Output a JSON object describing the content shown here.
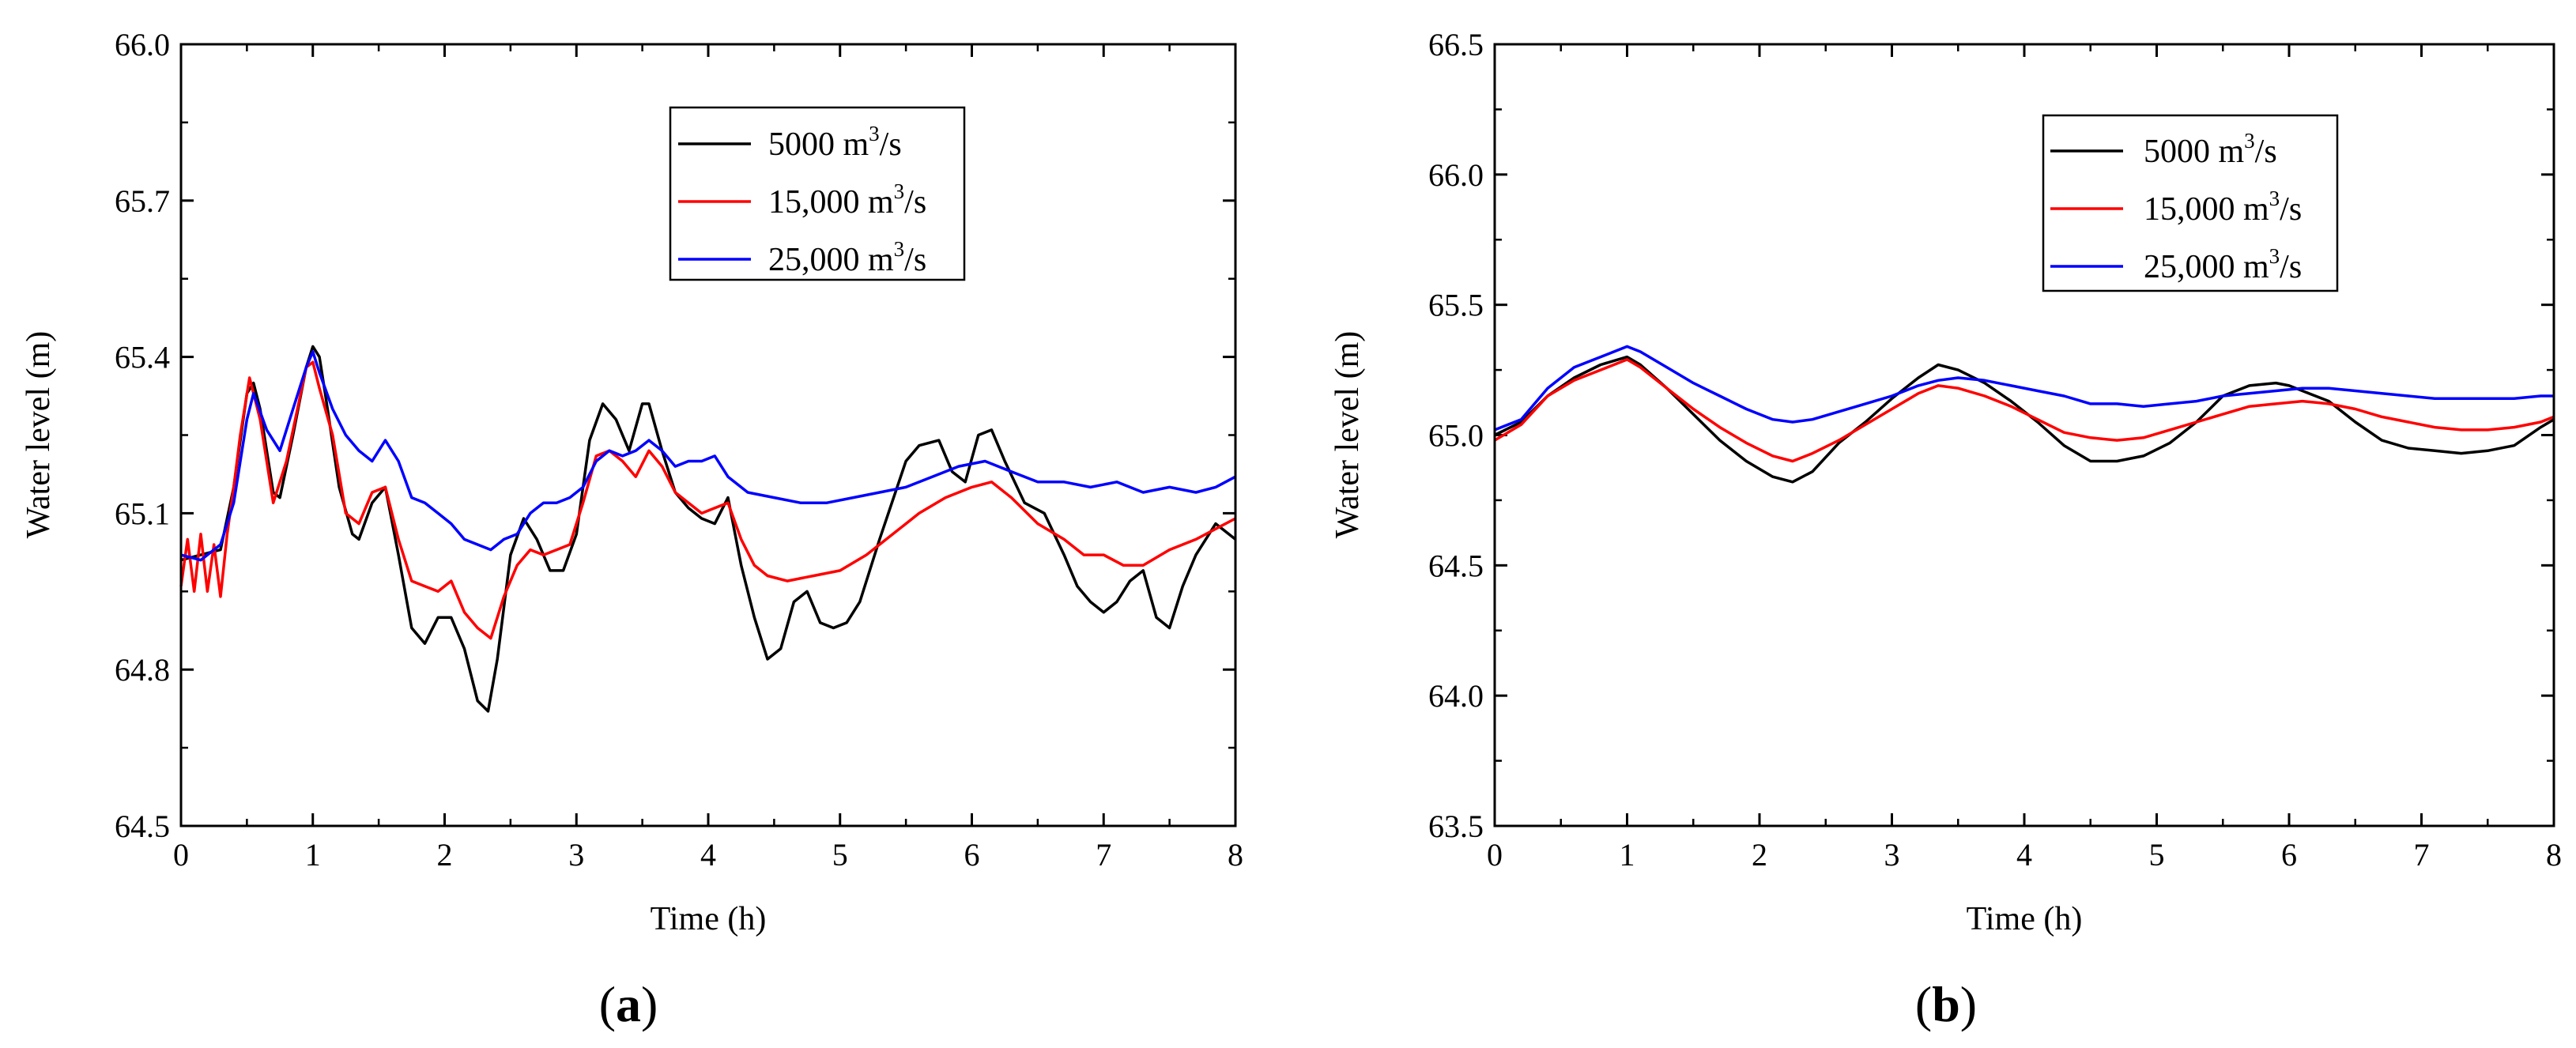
{
  "chart_data": [
    {
      "type": "line",
      "panel_label": "a",
      "xlabel": "Time (h)",
      "ylabel": "Water level (m)",
      "xlim": [
        0,
        8
      ],
      "ylim": [
        64.5,
        66.0
      ],
      "xticks": [
        0,
        1,
        2,
        3,
        4,
        5,
        6,
        7,
        8
      ],
      "yticks": [
        64.5,
        64.8,
        65.1,
        65.4,
        65.7,
        66.0
      ],
      "ytick_labels": [
        "64.5",
        "64.8",
        "65.1",
        "65.4",
        "65.7",
        "66.0"
      ],
      "grid": false,
      "legend_position": "top-right",
      "series": [
        {
          "name": "5000 m3/s",
          "label_main": "5000 m",
          "label_sup": "3",
          "label_tail": "/s",
          "color": "#000000",
          "x": [
            0,
            0.15,
            0.3,
            0.4,
            0.5,
            0.55,
            0.6,
            0.7,
            0.75,
            0.85,
            0.95,
            1.0,
            1.05,
            1.1,
            1.2,
            1.3,
            1.35,
            1.45,
            1.55,
            1.65,
            1.75,
            1.85,
            1.95,
            2.05,
            2.15,
            2.25,
            2.33,
            2.4,
            2.5,
            2.6,
            2.7,
            2.8,
            2.9,
            3.0,
            3.1,
            3.2,
            3.3,
            3.4,
            3.5,
            3.55,
            3.65,
            3.75,
            3.85,
            3.95,
            4.05,
            4.15,
            4.25,
            4.35,
            4.45,
            4.55,
            4.65,
            4.75,
            4.85,
            4.95,
            5.05,
            5.15,
            5.3,
            5.5,
            5.6,
            5.75,
            5.85,
            5.95,
            6.05,
            6.15,
            6.25,
            6.4,
            6.55,
            6.7,
            6.8,
            6.9,
            7.0,
            7.1,
            7.2,
            7.3,
            7.4,
            7.5,
            7.6,
            7.7,
            7.85,
            8.0
          ],
          "y": [
            65.01,
            65.02,
            65.03,
            65.15,
            65.33,
            65.35,
            65.3,
            65.14,
            65.13,
            65.25,
            65.38,
            65.42,
            65.4,
            65.32,
            65.15,
            65.06,
            65.05,
            65.12,
            65.15,
            65.02,
            64.88,
            64.85,
            64.9,
            64.9,
            64.84,
            64.74,
            64.72,
            64.82,
            65.02,
            65.09,
            65.05,
            64.99,
            64.99,
            65.06,
            65.24,
            65.31,
            65.28,
            65.22,
            65.31,
            65.31,
            65.22,
            65.14,
            65.11,
            65.09,
            65.08,
            65.13,
            65.0,
            64.9,
            64.82,
            64.84,
            64.93,
            64.95,
            64.89,
            64.88,
            64.89,
            64.93,
            65.05,
            65.2,
            65.23,
            65.24,
            65.18,
            65.16,
            65.25,
            65.26,
            65.2,
            65.12,
            65.1,
            65.02,
            64.96,
            64.93,
            64.91,
            64.93,
            64.97,
            64.99,
            64.9,
            64.88,
            64.96,
            65.02,
            65.08,
            65.05
          ]
        },
        {
          "name": "15,000 m3/s",
          "label_main": "15,000 m",
          "label_sup": "3",
          "label_tail": "/s",
          "color": "#ff0000",
          "x": [
            0,
            0.05,
            0.1,
            0.15,
            0.2,
            0.25,
            0.3,
            0.35,
            0.4,
            0.45,
            0.52,
            0.6,
            0.7,
            0.8,
            0.9,
            0.95,
            1.0,
            1.05,
            1.15,
            1.25,
            1.35,
            1.45,
            1.55,
            1.65,
            1.75,
            1.85,
            1.95,
            2.05,
            2.15,
            2.25,
            2.35,
            2.45,
            2.55,
            2.65,
            2.75,
            2.85,
            2.95,
            3.05,
            3.15,
            3.25,
            3.35,
            3.45,
            3.55,
            3.65,
            3.75,
            3.85,
            3.95,
            4.05,
            4.15,
            4.25,
            4.35,
            4.45,
            4.6,
            4.8,
            5.0,
            5.2,
            5.4,
            5.6,
            5.8,
            6.0,
            6.15,
            6.3,
            6.5,
            6.7,
            6.85,
            7.0,
            7.15,
            7.3,
            7.5,
            7.7,
            7.85,
            8.0
          ],
          "y": [
            64.96,
            65.05,
            64.95,
            65.06,
            64.95,
            65.04,
            64.94,
            65.06,
            65.15,
            65.25,
            65.36,
            65.28,
            65.12,
            65.2,
            65.32,
            65.38,
            65.39,
            65.34,
            65.25,
            65.1,
            65.08,
            65.14,
            65.15,
            65.05,
            64.97,
            64.96,
            64.95,
            64.97,
            64.91,
            64.88,
            64.86,
            64.94,
            65.0,
            65.03,
            65.02,
            65.03,
            65.04,
            65.12,
            65.21,
            65.22,
            65.2,
            65.17,
            65.22,
            65.19,
            65.14,
            65.12,
            65.1,
            65.11,
            65.12,
            65.05,
            65.0,
            64.98,
            64.97,
            64.98,
            64.99,
            65.02,
            65.06,
            65.1,
            65.13,
            65.15,
            65.16,
            65.13,
            65.08,
            65.05,
            65.02,
            65.02,
            65.0,
            65.0,
            65.03,
            65.05,
            65.07,
            65.09
          ]
        },
        {
          "name": "25,000 m3/s",
          "label_main": "25,000 m",
          "label_sup": "3",
          "label_tail": "/s",
          "color": "#0000ff",
          "x": [
            0,
            0.15,
            0.3,
            0.4,
            0.5,
            0.55,
            0.65,
            0.75,
            0.85,
            0.95,
            1.0,
            1.05,
            1.15,
            1.25,
            1.35,
            1.45,
            1.55,
            1.65,
            1.75,
            1.85,
            1.95,
            2.05,
            2.15,
            2.25,
            2.35,
            2.45,
            2.55,
            2.65,
            2.75,
            2.85,
            2.95,
            3.05,
            3.15,
            3.25,
            3.35,
            3.45,
            3.55,
            3.65,
            3.75,
            3.85,
            3.95,
            4.05,
            4.15,
            4.3,
            4.5,
            4.7,
            4.9,
            5.1,
            5.3,
            5.5,
            5.7,
            5.9,
            6.1,
            6.3,
            6.5,
            6.7,
            6.9,
            7.1,
            7.3,
            7.5,
            7.7,
            7.85,
            8.0
          ],
          "y": [
            65.02,
            65.01,
            65.04,
            65.12,
            65.28,
            65.33,
            65.26,
            65.22,
            65.3,
            65.38,
            65.41,
            65.37,
            65.3,
            65.25,
            65.22,
            65.2,
            65.24,
            65.2,
            65.13,
            65.12,
            65.1,
            65.08,
            65.05,
            65.04,
            65.03,
            65.05,
            65.06,
            65.1,
            65.12,
            65.12,
            65.13,
            65.15,
            65.2,
            65.22,
            65.21,
            65.22,
            65.24,
            65.22,
            65.19,
            65.2,
            65.2,
            65.21,
            65.17,
            65.14,
            65.13,
            65.12,
            65.12,
            65.13,
            65.14,
            65.15,
            65.17,
            65.19,
            65.2,
            65.18,
            65.16,
            65.16,
            65.15,
            65.16,
            65.14,
            65.15,
            65.14,
            65.15,
            65.17
          ]
        }
      ]
    },
    {
      "type": "line",
      "panel_label": "b",
      "xlabel": "Time (h)",
      "ylabel": "Water level (m)",
      "xlim": [
        0,
        8
      ],
      "ylim": [
        63.5,
        66.5
      ],
      "xticks": [
        0,
        1,
        2,
        3,
        4,
        5,
        6,
        7,
        8
      ],
      "yticks": [
        63.5,
        64.0,
        64.5,
        65.0,
        65.5,
        66.0,
        66.5
      ],
      "ytick_labels": [
        "63.5",
        "64.0",
        "64.5",
        "65.0",
        "65.5",
        "66.0",
        "66.5"
      ],
      "grid": false,
      "legend_position": "top-right",
      "series": [
        {
          "name": "5000 m3/s",
          "label_main": "5000 m",
          "label_sup": "3",
          "label_tail": "/s",
          "color": "#000000",
          "x": [
            0,
            0.2,
            0.4,
            0.6,
            0.8,
            1.0,
            1.1,
            1.3,
            1.5,
            1.7,
            1.9,
            2.1,
            2.25,
            2.4,
            2.6,
            2.8,
            3.0,
            3.2,
            3.35,
            3.5,
            3.7,
            3.9,
            4.1,
            4.3,
            4.5,
            4.7,
            4.9,
            5.1,
            5.3,
            5.5,
            5.7,
            5.9,
            6.0,
            6.1,
            6.3,
            6.5,
            6.7,
            6.9,
            7.1,
            7.3,
            7.5,
            7.7,
            7.9,
            8.0
          ],
          "y": [
            65.0,
            65.05,
            65.15,
            65.22,
            65.27,
            65.3,
            65.27,
            65.18,
            65.08,
            64.98,
            64.9,
            64.84,
            64.82,
            64.86,
            64.97,
            65.05,
            65.14,
            65.22,
            65.27,
            65.25,
            65.2,
            65.13,
            65.05,
            64.96,
            64.9,
            64.9,
            64.92,
            64.97,
            65.05,
            65.15,
            65.19,
            65.2,
            65.19,
            65.17,
            65.13,
            65.05,
            64.98,
            64.95,
            64.94,
            64.93,
            64.94,
            64.96,
            65.03,
            65.06
          ]
        },
        {
          "name": "15,000 m3/s",
          "label_main": "15,000 m",
          "label_sup": "3",
          "label_tail": "/s",
          "color": "#ff0000",
          "x": [
            0,
            0.2,
            0.4,
            0.6,
            0.8,
            1.0,
            1.1,
            1.3,
            1.5,
            1.7,
            1.9,
            2.1,
            2.25,
            2.4,
            2.6,
            2.8,
            3.0,
            3.2,
            3.35,
            3.5,
            3.7,
            3.9,
            4.1,
            4.3,
            4.5,
            4.7,
            4.9,
            5.1,
            5.3,
            5.5,
            5.7,
            5.9,
            6.1,
            6.3,
            6.5,
            6.7,
            6.9,
            7.1,
            7.3,
            7.5,
            7.7,
            7.9,
            8.0
          ],
          "y": [
            64.98,
            65.04,
            65.15,
            65.21,
            65.25,
            65.29,
            65.26,
            65.18,
            65.1,
            65.03,
            64.97,
            64.92,
            64.9,
            64.93,
            64.98,
            65.04,
            65.1,
            65.16,
            65.19,
            65.18,
            65.15,
            65.11,
            65.06,
            65.01,
            64.99,
            64.98,
            64.99,
            65.02,
            65.05,
            65.08,
            65.11,
            65.12,
            65.13,
            65.12,
            65.1,
            65.07,
            65.05,
            65.03,
            65.02,
            65.02,
            65.03,
            65.05,
            65.07
          ]
        },
        {
          "name": "25,000 m3/s",
          "label_main": "25,000 m",
          "label_sup": "3",
          "label_tail": "/s",
          "color": "#0000ff",
          "x": [
            0,
            0.2,
            0.4,
            0.6,
            0.8,
            1.0,
            1.1,
            1.3,
            1.5,
            1.7,
            1.9,
            2.1,
            2.25,
            2.4,
            2.6,
            2.8,
            3.0,
            3.2,
            3.35,
            3.5,
            3.7,
            3.9,
            4.1,
            4.3,
            4.5,
            4.7,
            4.9,
            5.1,
            5.3,
            5.5,
            5.7,
            5.9,
            6.1,
            6.3,
            6.5,
            6.7,
            6.9,
            7.1,
            7.3,
            7.5,
            7.7,
            7.9,
            8.0
          ],
          "y": [
            65.02,
            65.06,
            65.18,
            65.26,
            65.3,
            65.34,
            65.32,
            65.26,
            65.2,
            65.15,
            65.1,
            65.06,
            65.05,
            65.06,
            65.09,
            65.12,
            65.15,
            65.19,
            65.21,
            65.22,
            65.21,
            65.19,
            65.17,
            65.15,
            65.12,
            65.12,
            65.11,
            65.12,
            65.13,
            65.15,
            65.16,
            65.17,
            65.18,
            65.18,
            65.17,
            65.16,
            65.15,
            65.14,
            65.14,
            65.14,
            65.14,
            65.15,
            65.15
          ]
        }
      ]
    }
  ]
}
